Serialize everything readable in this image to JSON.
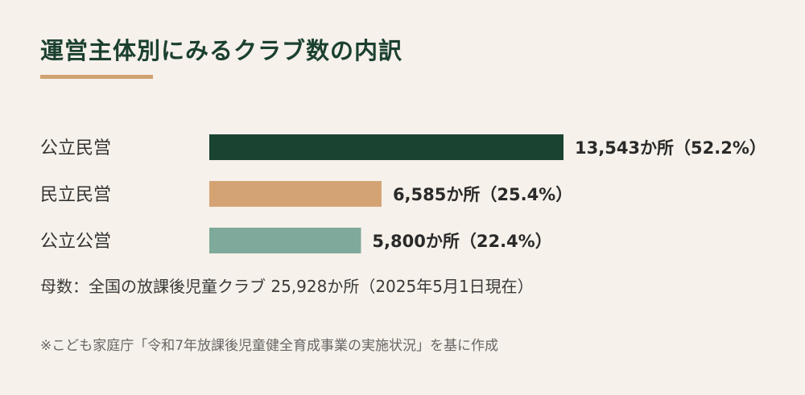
{
  "title": "運営主体別にみるクラブ数の内訳",
  "colors": {
    "accent": "#d1a272",
    "title": "#1b4030"
  },
  "chart_data": {
    "type": "bar",
    "orientation": "horizontal",
    "categories": [
      "公立民営",
      "民立民営",
      "公立公営"
    ],
    "values": [
      13543,
      6585,
      5800
    ],
    "value_labels": [
      "13,543か所（52.2%）",
      "6,585か所（25.4%）",
      "5,800か所（22.4%）"
    ],
    "percentages": [
      52.2,
      25.4,
      22.4
    ],
    "colors": [
      "#1b4332",
      "#d4a373",
      "#7fa99b"
    ],
    "xlim": [
      0,
      13543
    ],
    "grid": false
  },
  "note": "母数：全国の放課後児童クラブ 25,928か所（2025年5月1日現在）",
  "source": "※こども家庭庁「令和7年放課後児童健全育成事業の実施状況」を基に作成"
}
